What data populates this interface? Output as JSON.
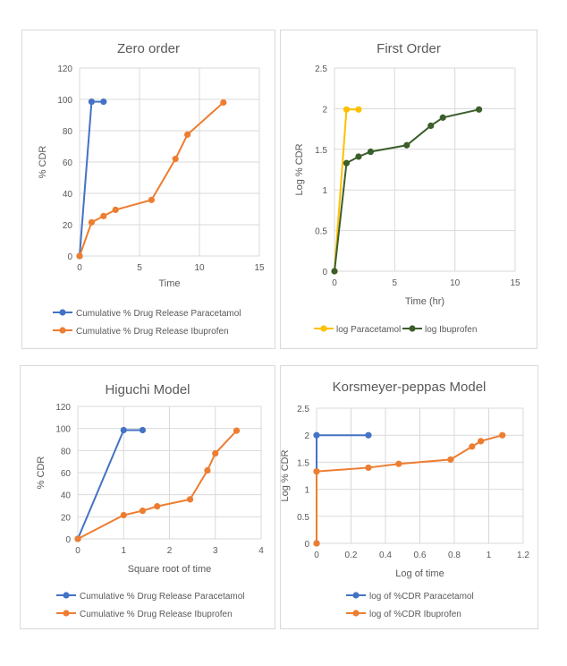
{
  "chart_data": [
    {
      "type": "line",
      "title": "Zero order",
      "xlabel": "Time",
      "ylabel": "% CDR",
      "xlim": [
        0,
        15
      ],
      "ylim": [
        0,
        120
      ],
      "xticks": [
        0,
        5,
        10,
        15
      ],
      "yticks": [
        0,
        20,
        40,
        60,
        80,
        100,
        120
      ],
      "grid": true,
      "legend": "bottom",
      "series": [
        {
          "name": "Cumulative % Drug Release Paracetamol",
          "color": "#4472c4",
          "x": [
            0,
            1,
            2
          ],
          "y": [
            0,
            98.5,
            98.5
          ]
        },
        {
          "name": "Cumulative % Drug Release Ibuprofen",
          "color": "#ed7d31",
          "x": [
            0,
            1,
            2,
            3,
            6,
            8,
            9,
            12
          ],
          "y": [
            0,
            21.5,
            25.5,
            29.5,
            35.8,
            62,
            77.5,
            98
          ]
        }
      ]
    },
    {
      "type": "line",
      "title": "First Order",
      "xlabel": "Time (hr)",
      "ylabel": "Log % CDR",
      "xlim": [
        0,
        15
      ],
      "ylim": [
        0,
        2.5
      ],
      "xticks": [
        0,
        5,
        10,
        15
      ],
      "yticks": [
        0,
        0.5,
        1,
        1.5,
        2,
        2.5
      ],
      "grid": true,
      "legend": "bottom",
      "series": [
        {
          "name": "log Paracetamol",
          "color": "#ffc000",
          "x": [
            0,
            1,
            2
          ],
          "y": [
            0,
            1.99,
            1.99
          ]
        },
        {
          "name": "log Ibuprofen",
          "color": "#3b5e2b",
          "x": [
            0,
            1,
            2,
            3,
            6,
            8,
            9,
            12
          ],
          "y": [
            0,
            1.33,
            1.41,
            1.47,
            1.55,
            1.79,
            1.89,
            1.99
          ]
        }
      ]
    },
    {
      "type": "line",
      "title": "Higuchi Model",
      "xlabel": "Square root of time",
      "ylabel": "% CDR",
      "xlim": [
        0,
        4
      ],
      "ylim": [
        0,
        120
      ],
      "xticks": [
        0,
        1,
        2,
        3,
        4
      ],
      "yticks": [
        0,
        20,
        40,
        60,
        80,
        100,
        120
      ],
      "grid": true,
      "legend": "bottom",
      "series": [
        {
          "name": "Cumulative % Drug Release Paracetamol",
          "color": "#4472c4",
          "x": [
            0,
            1,
            1.414
          ],
          "y": [
            0,
            98.5,
            98.5
          ]
        },
        {
          "name": "Cumulative % Drug Release Ibuprofen",
          "color": "#ed7d31",
          "x": [
            0,
            1,
            1.414,
            1.732,
            2.449,
            2.828,
            3,
            3.464
          ],
          "y": [
            0,
            21.5,
            25.5,
            29.5,
            35.8,
            62,
            77.5,
            98
          ]
        }
      ]
    },
    {
      "type": "line",
      "title": "Korsmeyer-peppas  Model",
      "xlabel": "Log of time",
      "ylabel": "Log % CDR",
      "xlim": [
        0,
        1.2
      ],
      "ylim": [
        0,
        2.5
      ],
      "xticks": [
        0,
        0.2,
        0.4,
        0.6,
        0.8,
        1,
        1.2
      ],
      "yticks": [
        0,
        0.5,
        1,
        1.5,
        2,
        2.5
      ],
      "grid": true,
      "legend": "bottom",
      "series": [
        {
          "name": "log of %CDR Paracetamol",
          "color": "#4472c4",
          "x": [
            0,
            0,
            0.301
          ],
          "y": [
            0,
            2,
            2
          ]
        },
        {
          "name": "log of %CDR Ibuprofen",
          "color": "#ed7d31",
          "x": [
            0,
            0,
            0.301,
            0.477,
            0.778,
            0.903,
            0.954,
            1.079
          ],
          "y": [
            0,
            1.33,
            1.4,
            1.47,
            1.55,
            1.79,
            1.89,
            2.0
          ]
        }
      ]
    }
  ]
}
